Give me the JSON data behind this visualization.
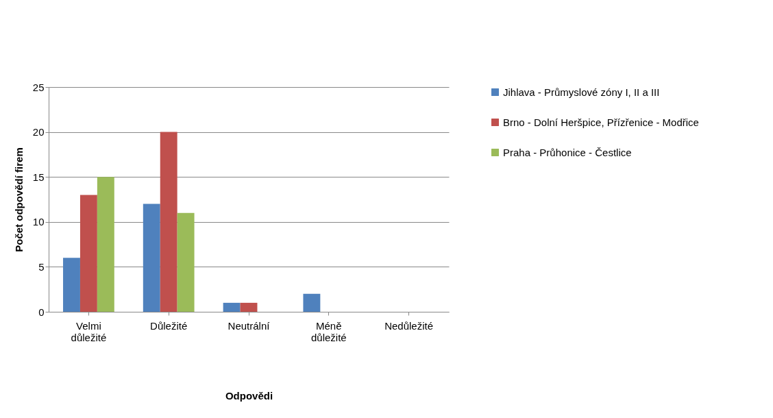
{
  "chart_data": {
    "type": "bar",
    "xlabel": "Odpovědi",
    "ylabel": "Počet odpovědí firem",
    "categories": [
      "Velmi důležité",
      "Důležité",
      "Neutrální",
      "Méně důležité",
      "Nedůležité"
    ],
    "series": [
      {
        "name": "Jihlava - Průmyslové zóny I, II a III",
        "color": "#4f81bd",
        "values": [
          6,
          12,
          1,
          2,
          0
        ]
      },
      {
        "name": "Brno - Dolní Heršpice, Přízřenice - Modřice",
        "color": "#c0504d",
        "values": [
          13,
          20,
          1,
          0,
          0
        ]
      },
      {
        "name": "Praha - Průhonice - Čestlice",
        "color": "#9bbb59",
        "values": [
          15,
          11,
          0,
          0,
          0
        ]
      }
    ],
    "ylim": [
      0,
      25
    ],
    "yticks": [
      0,
      5,
      10,
      15,
      20,
      25
    ],
    "grid": "y",
    "legend": "right"
  }
}
